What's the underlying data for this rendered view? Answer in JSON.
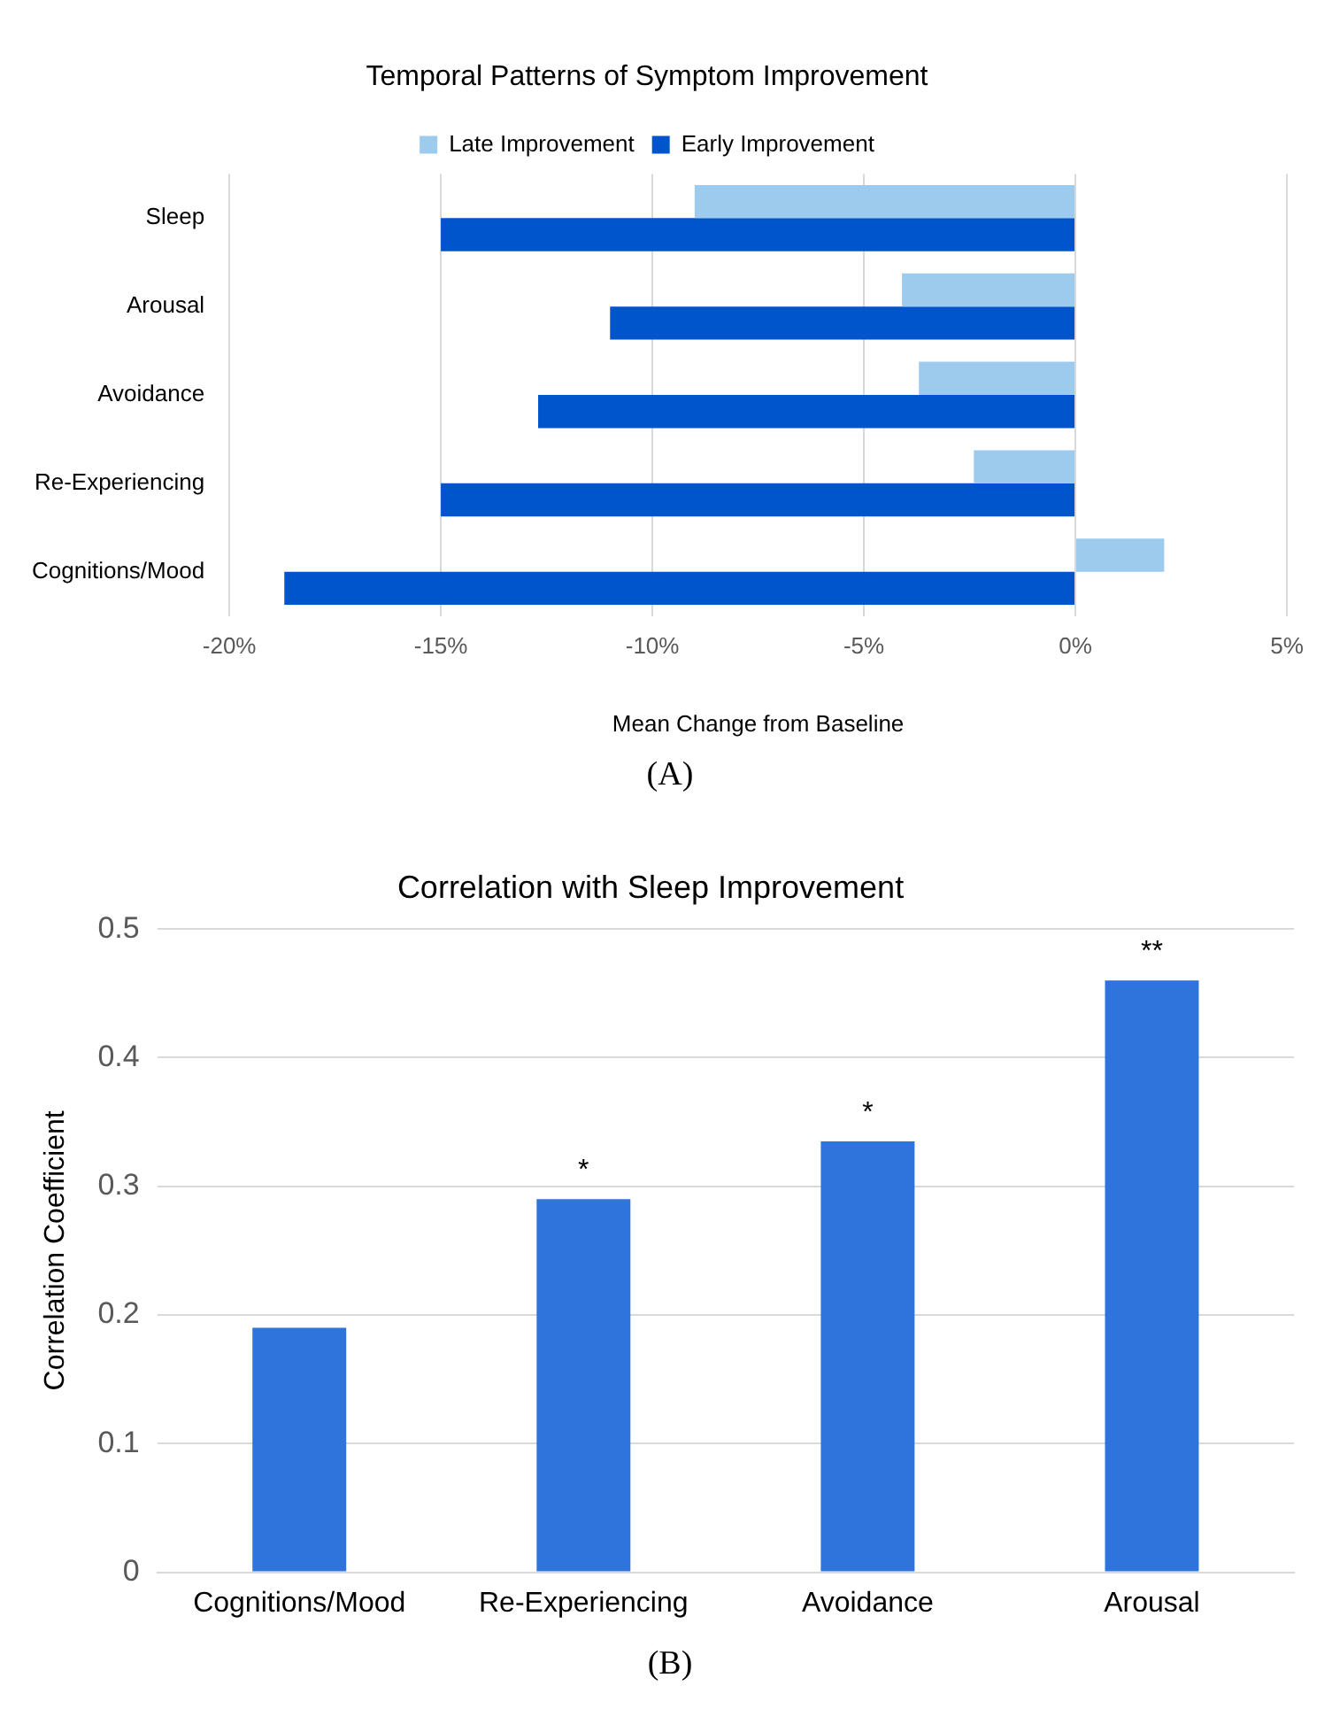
{
  "chart_data": [
    {
      "type": "bar",
      "orientation": "horizontal",
      "title": "Temporal Patterns of Symptom Improvement",
      "xlabel": "Mean Change from Baseline",
      "categories": [
        "Sleep",
        "Arousal",
        "Avoidance",
        "Re-Experiencing",
        "Cognitions/Mood"
      ],
      "series": [
        {
          "name": "Late Improvement",
          "color": "#9ccbee",
          "values": [
            -9.0,
            -4.1,
            -3.7,
            -2.4,
            2.1
          ]
        },
        {
          "name": "Early Improvement",
          "color": "#0055cc",
          "values": [
            -15.0,
            -11.0,
            -12.7,
            -15.0,
            -18.7
          ]
        }
      ],
      "xlim": [
        -20,
        5
      ],
      "xticks": [
        {
          "value": -20,
          "label": "-20%"
        },
        {
          "value": -15,
          "label": "-15%"
        },
        {
          "value": -10,
          "label": "-10%"
        },
        {
          "value": -5,
          "label": "-5%"
        },
        {
          "value": 0,
          "label": "0%"
        },
        {
          "value": 5,
          "label": "5%"
        }
      ],
      "grid": "x",
      "legend": "top",
      "annotations": [
        "(A)"
      ]
    },
    {
      "type": "bar",
      "title": "Correlation with Sleep Improvement",
      "ylabel": "Correlation Coefficient",
      "categories": [
        "Cognitions/Mood",
        "Re-Experiencing",
        "Avoidance",
        "Arousal"
      ],
      "values": [
        0.19,
        0.29,
        0.335,
        0.46
      ],
      "color": "#2f74dc",
      "ylim": [
        0,
        0.5
      ],
      "yticks": [
        0,
        0.1,
        0.2,
        0.3,
        0.4,
        0.5
      ],
      "grid": "y",
      "annotations": [
        {
          "text": "*",
          "x": "Re-Experiencing",
          "y": 0.29
        },
        {
          "text": "*",
          "x": "Avoidance",
          "y": 0.335
        },
        {
          "text": "**",
          "x": "Arousal",
          "y": 0.46
        },
        "(B)"
      ]
    }
  ]
}
